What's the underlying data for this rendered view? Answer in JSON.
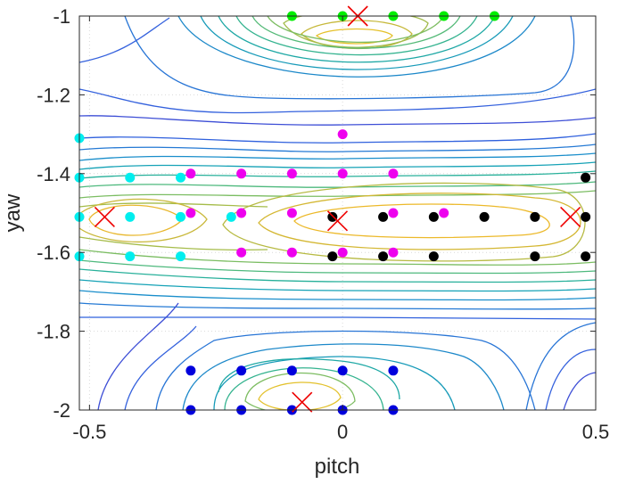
{
  "chart_data": {
    "type": "scatter",
    "title": "",
    "xlabel": "pitch",
    "ylabel": "yaw",
    "xlim": [
      -0.52,
      0.5
    ],
    "ylim": [
      -2.0,
      -1.0
    ],
    "x_ticks": [
      -0.5,
      0,
      0.5
    ],
    "x_tick_labels": [
      "-0.5",
      "0",
      "0.5"
    ],
    "y_ticks": [
      -1.0,
      -1.2,
      -1.4,
      -1.6,
      -1.8,
      -2.0
    ],
    "y_tick_labels": [
      "-1",
      "-1.2",
      "-1.4",
      "-1.6",
      "-1.8",
      "-2"
    ],
    "grid": true,
    "legend": "none",
    "background_contours": {
      "type": "contour",
      "colormap": "parula",
      "note": "contour lines of an underlying scalar field"
    },
    "series": [
      {
        "color": "#00ee00",
        "marker": "circle",
        "points": [
          [
            -0.1,
            -1.0
          ],
          [
            0.0,
            -1.0
          ],
          [
            0.1,
            -1.0
          ],
          [
            0.2,
            -1.0
          ],
          [
            0.3,
            -1.0
          ]
        ]
      },
      {
        "color": "#00eeee",
        "marker": "circle",
        "points": [
          [
            -0.52,
            -1.31
          ],
          [
            -0.52,
            -1.41
          ],
          [
            -0.52,
            -1.51
          ],
          [
            -0.52,
            -1.61
          ],
          [
            -0.42,
            -1.41
          ],
          [
            -0.42,
            -1.51
          ],
          [
            -0.42,
            -1.61
          ],
          [
            -0.32,
            -1.41
          ],
          [
            -0.32,
            -1.51
          ],
          [
            -0.32,
            -1.61
          ],
          [
            -0.22,
            -1.51
          ]
        ]
      },
      {
        "color": "#ee00ee",
        "marker": "circle",
        "points": [
          [
            -0.3,
            -1.4
          ],
          [
            -0.2,
            -1.4
          ],
          [
            -0.1,
            -1.4
          ],
          [
            0.0,
            -1.3
          ],
          [
            0.0,
            -1.4
          ],
          [
            0.1,
            -1.4
          ],
          [
            -0.3,
            -1.5
          ],
          [
            -0.2,
            -1.5
          ],
          [
            -0.1,
            -1.5
          ],
          [
            0.1,
            -1.5
          ],
          [
            0.2,
            -1.5
          ],
          [
            -0.2,
            -1.6
          ],
          [
            -0.1,
            -1.6
          ],
          [
            0.0,
            -1.6
          ],
          [
            0.1,
            -1.6
          ]
        ]
      },
      {
        "color": "#000000",
        "marker": "circle",
        "points": [
          [
            -0.02,
            -1.51
          ],
          [
            -0.02,
            -1.61
          ],
          [
            0.08,
            -1.51
          ],
          [
            0.08,
            -1.61
          ],
          [
            0.18,
            -1.51
          ],
          [
            0.18,
            -1.61
          ],
          [
            0.28,
            -1.51
          ],
          [
            0.38,
            -1.51
          ],
          [
            0.38,
            -1.61
          ],
          [
            0.48,
            -1.41
          ],
          [
            0.48,
            -1.51
          ],
          [
            0.48,
            -1.61
          ]
        ]
      },
      {
        "color": "#0000dd",
        "marker": "circle",
        "points": [
          [
            -0.3,
            -1.9
          ],
          [
            -0.2,
            -1.9
          ],
          [
            -0.1,
            -1.9
          ],
          [
            0.0,
            -1.9
          ],
          [
            0.1,
            -1.9
          ],
          [
            -0.3,
            -2.0
          ],
          [
            -0.2,
            -2.0
          ],
          [
            -0.1,
            -2.0
          ],
          [
            0.0,
            -2.0
          ],
          [
            0.1,
            -2.0
          ]
        ]
      },
      {
        "color": "#ee0000",
        "marker": "x",
        "points": [
          [
            0.03,
            -1.0
          ],
          [
            -0.47,
            -1.51
          ],
          [
            -0.01,
            -1.52
          ],
          [
            0.45,
            -1.51
          ],
          [
            -0.08,
            -1.98
          ]
        ]
      }
    ]
  }
}
